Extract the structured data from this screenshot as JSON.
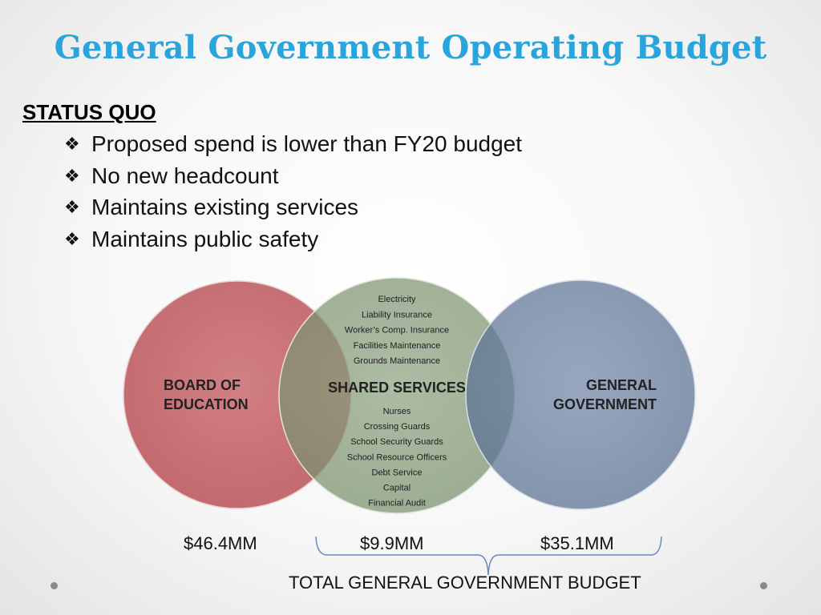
{
  "title": "General Government Operating Budget",
  "status": {
    "heading": "STATUS QUO",
    "bullets": [
      "Proposed spend is lower than FY20 budget",
      "No new headcount",
      "Maintains existing services",
      "Maintains public safety"
    ]
  },
  "venn": {
    "left": {
      "label_line1": "BOARD OF",
      "label_line2": "EDUCATION",
      "amount": "$46.4MM",
      "color": "#c0565b"
    },
    "center": {
      "label": "SHARED SERVICES",
      "items_top": [
        "Electricity",
        "Liability Insurance",
        "Worker’s Comp. Insurance",
        "Facilities Maintenance",
        "Grounds Maintenance"
      ],
      "items_bottom": [
        "Nurses",
        "Crossing Guards",
        "School Security Guards",
        "School Resource Officers",
        "Debt Service",
        "Capital",
        "Financial Audit"
      ],
      "amount": "$9.9MM",
      "color": "#7d9871"
    },
    "right": {
      "label_line1": "GENERAL",
      "label_line2": "GOVERNMENT",
      "amount": "$35.1MM",
      "color": "#5f7698"
    }
  },
  "total_label": "TOTAL GENERAL GOVERNMENT BUDGET",
  "colors": {
    "title": "#2aa4dd",
    "bracket": "#6b86c4"
  }
}
